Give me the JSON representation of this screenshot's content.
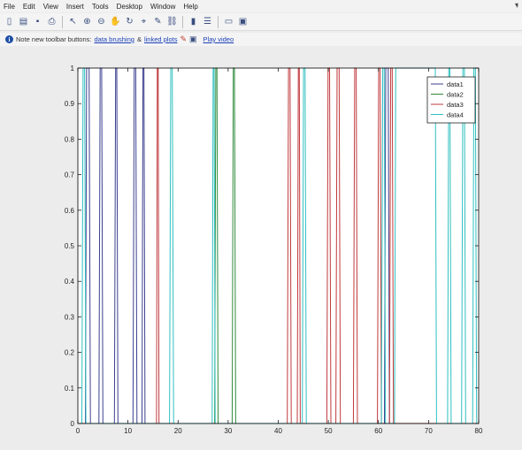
{
  "menu": [
    "File",
    "Edit",
    "View",
    "Insert",
    "Tools",
    "Desktop",
    "Window",
    "Help"
  ],
  "menu_arrow": "▾",
  "toolbar": {
    "icons": [
      "new-figure-icon",
      "open-file-icon",
      "save-icon",
      "print-icon",
      "pointer-icon",
      "zoom-in-icon",
      "zoom-out-icon",
      "pan-icon",
      "rotate-icon",
      "data-cursor-icon",
      "brush-icon",
      "link-plot-icon",
      "colorbar-icon",
      "legend-icon",
      "hide-plot-tools-icon",
      "show-plot-tools-icon"
    ]
  },
  "notebar": {
    "text": "Note new toolbar buttons:",
    "link1": "data brushing",
    "amp": "&",
    "link2": "linked plots",
    "link3": "Play video",
    "arrow": "›"
  },
  "chart_data": {
    "type": "line",
    "title": "",
    "xlabel": "",
    "ylabel": "",
    "xlim": [
      0,
      80
    ],
    "ylim": [
      0,
      1
    ],
    "xticks": [
      0,
      10,
      20,
      30,
      40,
      50,
      60,
      70,
      80
    ],
    "yticks": [
      0,
      0.1,
      0.2,
      0.3,
      0.4,
      0.5,
      0.6,
      0.7,
      0.8,
      0.9,
      1
    ],
    "legend_position": "top-right",
    "series": [
      {
        "name": "data1",
        "color": "#3b3f8f",
        "pulses": [
          [
            1.5,
            2.5
          ],
          [
            4.2,
            5.0
          ],
          [
            7.3,
            8.0
          ],
          [
            11.0,
            11.8
          ],
          [
            12.8,
            13.4
          ],
          [
            61.2,
            62.2
          ]
        ]
      },
      {
        "name": "data2",
        "color": "#2f8a3a",
        "pulses": [
          [
            27.3,
            28.0
          ],
          [
            30.8,
            31.5
          ]
        ]
      },
      {
        "name": "data3",
        "color": "#c0393c",
        "pulses": [
          [
            15.7,
            16.2
          ],
          [
            41.8,
            42.6
          ],
          [
            43.8,
            44.4
          ],
          [
            49.7,
            50.5
          ],
          [
            51.5,
            52.4
          ],
          [
            55.0,
            55.8
          ],
          [
            59.8,
            60.6
          ],
          [
            62.2,
            63.0
          ]
        ]
      },
      {
        "name": "data4",
        "color": "#2fbfbf",
        "pulses": [
          [
            0.8,
            1.6
          ],
          [
            18.3,
            19.1
          ],
          [
            26.8,
            27.4
          ],
          [
            44.8,
            45.6
          ],
          [
            60.6,
            61.4
          ],
          [
            63.2,
            71.6
          ],
          [
            73.8,
            74.5
          ],
          [
            76.6,
            77.4
          ],
          [
            78.8,
            79.6
          ]
        ]
      }
    ]
  }
}
